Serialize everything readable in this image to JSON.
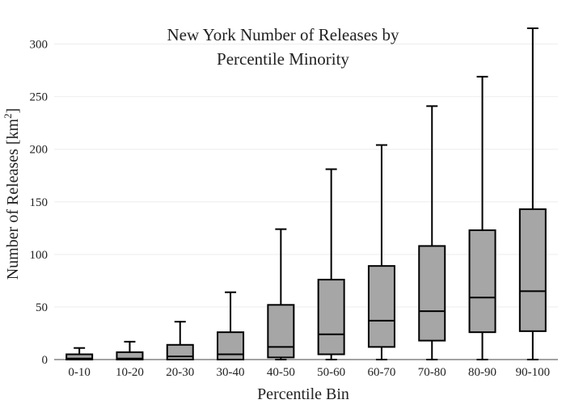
{
  "chart_data": {
    "type": "box",
    "title_line1": "New York Number of Releases by",
    "title_line2": "Percentile Minority",
    "xlabel": "Percentile Bin",
    "ylabel_main": "Number of Releases  [km",
    "ylabel_sup": "2",
    "ylabel_end": "]",
    "ylim": [
      0,
      325
    ],
    "yticks": [
      0,
      50,
      100,
      150,
      200,
      250,
      300
    ],
    "grid": true,
    "legend": "none",
    "box_color": "#a6a6a6",
    "categories": [
      "0-10",
      "10-20",
      "20-30",
      "30-40",
      "40-50",
      "50-60",
      "60-70",
      "70-80",
      "80-90",
      "90-100"
    ],
    "boxes": [
      {
        "min": 0,
        "q1": 0,
        "median": 1,
        "q3": 5,
        "max": 11
      },
      {
        "min": 0,
        "q1": 0,
        "median": 1,
        "q3": 7,
        "max": 17
      },
      {
        "min": 0,
        "q1": 0,
        "median": 3,
        "q3": 14,
        "max": 36
      },
      {
        "min": 0,
        "q1": 0,
        "median": 5,
        "q3": 26,
        "max": 64
      },
      {
        "min": 0,
        "q1": 2,
        "median": 12,
        "q3": 52,
        "max": 124
      },
      {
        "min": 0,
        "q1": 5,
        "median": 24,
        "q3": 76,
        "max": 181
      },
      {
        "min": 0,
        "q1": 12,
        "median": 37,
        "q3": 89,
        "max": 204
      },
      {
        "min": 0,
        "q1": 18,
        "median": 46,
        "q3": 108,
        "max": 241
      },
      {
        "min": 0,
        "q1": 26,
        "median": 59,
        "q3": 123,
        "max": 269
      },
      {
        "min": 0,
        "q1": 27,
        "median": 65,
        "q3": 143,
        "max": 315
      }
    ]
  }
}
